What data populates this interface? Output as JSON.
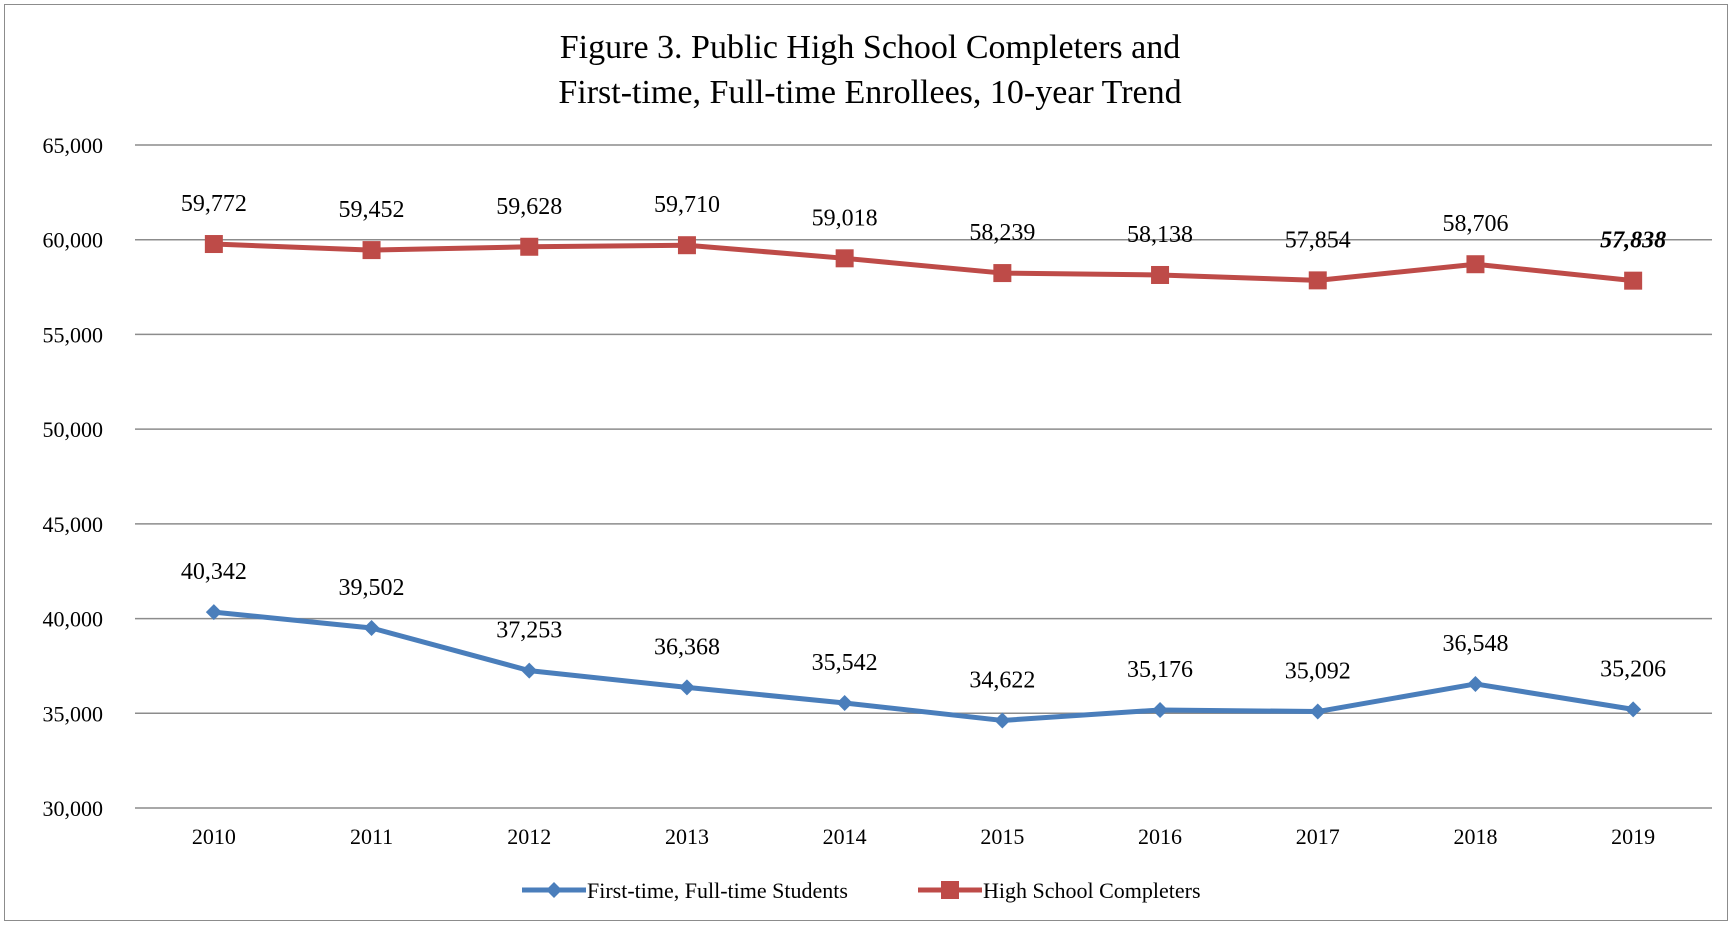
{
  "chart_data": {
    "type": "line",
    "title": [
      "Figure 3. Public High School Completers and",
      "First-time, Full-time Enrollees, 10-year Trend"
    ],
    "categories": [
      "2010",
      "2011",
      "2012",
      "2013",
      "2014",
      "2015",
      "2016",
      "2017",
      "2018",
      "2019"
    ],
    "ylim": [
      30000,
      65000
    ],
    "yticks": [
      30000,
      35000,
      40000,
      45000,
      50000,
      55000,
      60000,
      65000
    ],
    "ytick_labels": [
      "30,000",
      "35,000",
      "40,000",
      "45,000",
      "50,000",
      "55,000",
      "60,000",
      "65,000"
    ],
    "grid": "horizontal",
    "legend_position": "bottom",
    "series": [
      {
        "name": "First-time, Full-time Students",
        "color": "#4a7ebb",
        "marker": "diamond",
        "values": [
          40342,
          39502,
          37253,
          36368,
          35542,
          34622,
          35176,
          35092,
          36548,
          35206
        ],
        "labels": [
          "40,342",
          "39,502",
          "37,253",
          "36,368",
          "35,542",
          "34,622",
          "35,176",
          "35,092",
          "36,548",
          "35,206"
        ],
        "emphasized_label_index": -1
      },
      {
        "name": "High School Completers",
        "color": "#be4b48",
        "marker": "square",
        "values": [
          59772,
          59452,
          59628,
          59710,
          59018,
          58239,
          58138,
          57854,
          58706,
          57838
        ],
        "labels": [
          "59,772",
          "59,452",
          "59,628",
          "59,710",
          "59,018",
          "58,239",
          "58,138",
          "57,854",
          "58,706",
          "57,838"
        ],
        "emphasized_label_index": 9
      }
    ]
  },
  "colors": {
    "gridline": "#8c8c8c",
    "frame": "#8c8c8c"
  }
}
